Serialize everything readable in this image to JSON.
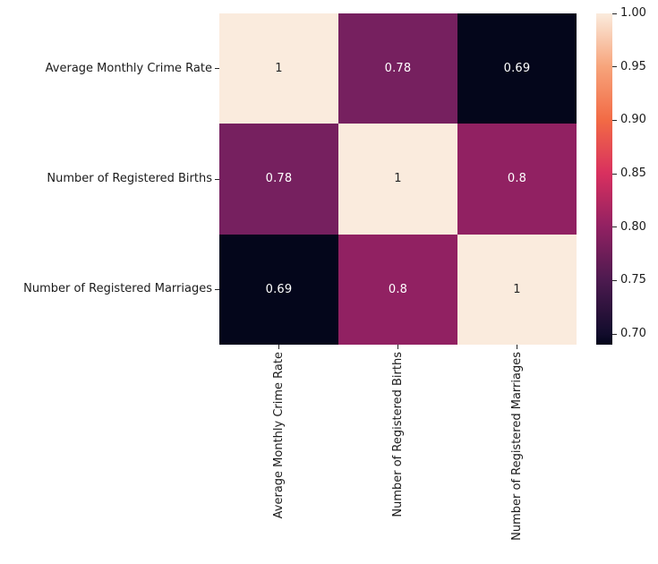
{
  "figure": {
    "background": "#ffffff",
    "axis_text_color": "#1b1b1b",
    "tick_color": "#262626"
  },
  "chart_data": {
    "type": "heatmap",
    "title": "",
    "xlabel": "",
    "ylabel": "",
    "categories": [
      "Average Monthly Crime Rate",
      "Number of Registered Births",
      "Number of Registered Marriages"
    ],
    "matrix": [
      [
        1,
        0.78,
        0.69
      ],
      [
        0.78,
        1,
        0.8
      ],
      [
        0.69,
        0.8,
        1
      ]
    ],
    "cell_labels": [
      [
        "1",
        "0.78",
        "0.69"
      ],
      [
        "0.78",
        "1",
        "0.8"
      ],
      [
        "0.69",
        "0.8",
        "1"
      ]
    ],
    "cell_colors": [
      [
        "#FAEBDD",
        "#76205F",
        "#04061B"
      ],
      [
        "#76205F",
        "#FAEBDD",
        "#912162"
      ],
      [
        "#04061B",
        "#912162",
        "#FAEBDD"
      ]
    ],
    "annotation_text_on_light": "#262626",
    "annotation_text_on_dark": "#FFFFFF",
    "colormap": "rocket",
    "grid": false,
    "legend_position": "right",
    "colorbar": {
      "vmin": 0.69,
      "vmax": 1.0,
      "tick_values": [
        1.0,
        0.95,
        0.9,
        0.85,
        0.8,
        0.75,
        0.7
      ],
      "tick_labels": [
        "1.00",
        "0.95",
        "0.90",
        "0.85",
        "0.80",
        "0.75",
        "0.70"
      ],
      "gradient_stops": [
        {
          "pos": 0,
          "color": "#FAEBDD"
        },
        {
          "pos": 16.1,
          "color": "#F7A47B"
        },
        {
          "pos": 32.3,
          "color": "#F26A45"
        },
        {
          "pos": 48.4,
          "color": "#D8305F"
        },
        {
          "pos": 64.5,
          "color": "#912162"
        },
        {
          "pos": 80.6,
          "color": "#4C1A4F"
        },
        {
          "pos": 96.8,
          "color": "#120C2C"
        },
        {
          "pos": 100,
          "color": "#03051A"
        }
      ]
    }
  }
}
